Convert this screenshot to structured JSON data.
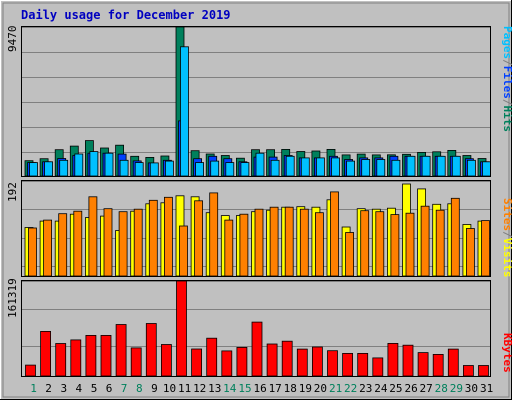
{
  "title": "Daily usage for December 2019",
  "colors": {
    "background": "#c0c0c0",
    "plot": "#c0c0c0",
    "title": "#0000c0",
    "hits": "#00805c",
    "files": "#0040ff",
    "pages": "#00c0ff",
    "visits": "#ffff00",
    "sites": "#ff8000",
    "kbytes": "#ff0000",
    "weekday_label": "#000000",
    "weekend_label": "#00805c",
    "gridline": "#808080"
  },
  "chart_data": [
    {
      "type": "bar",
      "panel": "hits_files_pages",
      "ymax_label": "9470",
      "ylim": [
        0,
        9470
      ],
      "right_labels": [
        {
          "text": "Pages",
          "color_key": "pages"
        },
        {
          "text": "/",
          "color_key": "gridline"
        },
        {
          "text": "Files",
          "color_key": "files"
        },
        {
          "text": "/",
          "color_key": "gridline"
        },
        {
          "text": "Hits",
          "color_key": "hits"
        }
      ],
      "series": [
        {
          "key": "hits",
          "values": [
            970,
            1100,
            1670,
            1900,
            2250,
            1780,
            1960,
            1250,
            1180,
            1270,
            9470,
            1610,
            1400,
            1300,
            1130,
            1670,
            1670,
            1690,
            1560,
            1590,
            1690,
            1340,
            1390,
            1340,
            1350,
            1380,
            1500,
            1540,
            1630,
            1300,
            1110
          ]
        },
        {
          "key": "files",
          "values": [
            850,
            900,
            1110,
            1300,
            1450,
            1450,
            1390,
            960,
            830,
            1000,
            3500,
            1100,
            1250,
            1100,
            900,
            1200,
            1200,
            1300,
            1150,
            1150,
            1250,
            1050,
            1150,
            1150,
            1250,
            1250,
            1250,
            1250,
            1250,
            1100,
            900
          ]
        },
        {
          "key": "pages",
          "values": [
            850,
            900,
            1000,
            1400,
            1550,
            1450,
            1000,
            850,
            830,
            950,
            8210,
            850,
            950,
            850,
            850,
            1450,
            1000,
            1250,
            1150,
            1150,
            1150,
            950,
            1050,
            1050,
            1000,
            1250,
            1250,
            1250,
            1250,
            1000,
            900
          ]
        }
      ]
    },
    {
      "type": "bar",
      "panel": "visits_sites",
      "ymax_label": "192",
      "ylim": [
        0,
        192
      ],
      "right_labels": [
        {
          "text": "Sites",
          "color_key": "sites"
        },
        {
          "text": "/",
          "color_key": "gridline"
        },
        {
          "text": "Visits",
          "color_key": "visits"
        }
      ],
      "series": [
        {
          "key": "visits",
          "values": [
            98,
            111,
            111,
            125,
            118,
            121,
            92,
            131,
            146,
            148,
            162,
            160,
            128,
            122,
            122,
            130,
            133,
            139,
            140,
            139,
            154,
            99,
            136,
            135,
            137,
            186,
            176,
            145,
            146,
            104,
            111
          ]
        },
        {
          "key": "sites",
          "values": [
            97,
            113,
            126,
            131,
            160,
            136,
            130,
            135,
            153,
            159,
            101,
            152,
            168,
            113,
            125,
            135,
            139,
            139,
            135,
            128,
            170,
            88,
            132,
            130,
            124,
            127,
            141,
            133,
            157,
            96,
            112
          ]
        }
      ]
    },
    {
      "type": "bar",
      "panel": "kbytes",
      "ymax_label": "161319",
      "ylim": [
        0,
        161319
      ],
      "right_labels": [
        {
          "text": "KBytes",
          "color_key": "kbytes"
        }
      ],
      "series": [
        {
          "key": "kbytes",
          "values": [
            18500,
            75800,
            55200,
            61300,
            68900,
            69000,
            87500,
            47800,
            89200,
            53500,
            161319,
            45800,
            64200,
            42700,
            48600,
            91600,
            54400,
            59100,
            45600,
            49200,
            42900,
            38300,
            38300,
            30700,
            55400,
            52300,
            39700,
            36700,
            45700,
            17900,
            17900
          ]
        }
      ]
    }
  ],
  "days": [
    {
      "label": "1",
      "weekend": true
    },
    {
      "label": "2",
      "weekend": false
    },
    {
      "label": "3",
      "weekend": false
    },
    {
      "label": "4",
      "weekend": false
    },
    {
      "label": "5",
      "weekend": false
    },
    {
      "label": "6",
      "weekend": false
    },
    {
      "label": "7",
      "weekend": true
    },
    {
      "label": "8",
      "weekend": true
    },
    {
      "label": "9",
      "weekend": false
    },
    {
      "label": "10",
      "weekend": false
    },
    {
      "label": "11",
      "weekend": false
    },
    {
      "label": "12",
      "weekend": false
    },
    {
      "label": "13",
      "weekend": false
    },
    {
      "label": "14",
      "weekend": true
    },
    {
      "label": "15",
      "weekend": true
    },
    {
      "label": "16",
      "weekend": false
    },
    {
      "label": "17",
      "weekend": false
    },
    {
      "label": "18",
      "weekend": false
    },
    {
      "label": "19",
      "weekend": false
    },
    {
      "label": "20",
      "weekend": false
    },
    {
      "label": "21",
      "weekend": true
    },
    {
      "label": "22",
      "weekend": true
    },
    {
      "label": "23",
      "weekend": false
    },
    {
      "label": "24",
      "weekend": false
    },
    {
      "label": "25",
      "weekend": false
    },
    {
      "label": "26",
      "weekend": false
    },
    {
      "label": "27",
      "weekend": false
    },
    {
      "label": "28",
      "weekend": true
    },
    {
      "label": "29",
      "weekend": true
    },
    {
      "label": "30",
      "weekend": false
    },
    {
      "label": "31",
      "weekend": false
    }
  ]
}
